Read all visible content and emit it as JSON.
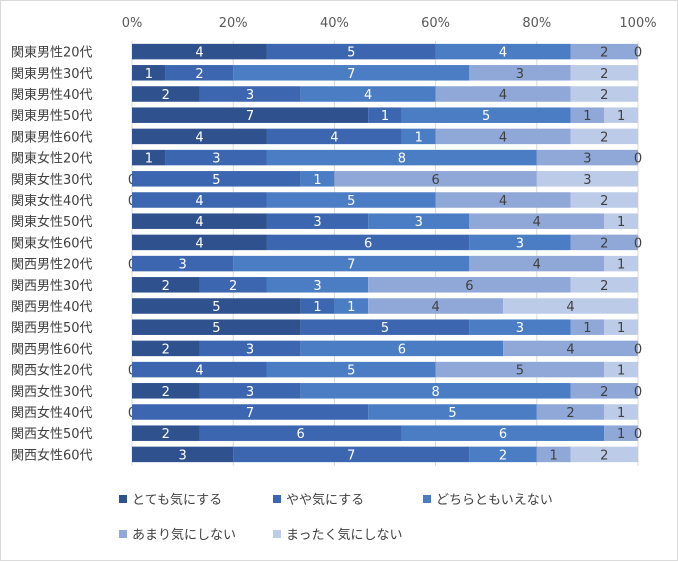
{
  "chart_data": {
    "type": "bar",
    "stacked": "percent",
    "orientation": "horizontal",
    "xlim": [
      0,
      100
    ],
    "x_ticks": [
      "0%",
      "20%",
      "40%",
      "60%",
      "80%",
      "100%"
    ],
    "categories": [
      "関東男性20代",
      "関東男性30代",
      "関東男性40代",
      "関東男性50代",
      "関東男性60代",
      "関東女性20代",
      "関東女性30代",
      "関東女性40代",
      "関東女性50代",
      "関東女性60代",
      "関西男性20代",
      "関西男性30代",
      "関西男性40代",
      "関西男性50代",
      "関西男性60代",
      "関西女性20代",
      "関西女性30代",
      "関西女性40代",
      "関西女性50代",
      "関西女性60代"
    ],
    "series": [
      {
        "name": "とても気にする",
        "color": "#2f528f",
        "label_color": "#ffffff",
        "values": [
          4,
          1,
          2,
          7,
          4,
          1,
          0,
          0,
          4,
          4,
          0,
          2,
          5,
          5,
          2,
          0,
          2,
          0,
          2,
          3
        ]
      },
      {
        "name": "やや気にする",
        "color": "#3c67b0",
        "label_color": "#ffffff",
        "values": [
          5,
          2,
          3,
          1,
          4,
          3,
          5,
          4,
          3,
          6,
          3,
          2,
          1,
          5,
          3,
          4,
          3,
          7,
          6,
          7
        ]
      },
      {
        "name": "どちらともいえない",
        "color": "#4a7dc4",
        "label_color": "#ffffff",
        "values": [
          4,
          7,
          4,
          5,
          1,
          8,
          1,
          5,
          3,
          3,
          7,
          3,
          1,
          3,
          6,
          5,
          8,
          5,
          6,
          2
        ]
      },
      {
        "name": "あまり気にしない",
        "color": "#8fa8d8",
        "label_color": "#404040",
        "values": [
          2,
          3,
          4,
          1,
          4,
          3,
          6,
          4,
          4,
          2,
          4,
          6,
          4,
          1,
          4,
          5,
          2,
          2,
          1,
          1
        ]
      },
      {
        "name": "まったく気にしない",
        "color": "#bccbe8",
        "label_color": "#404040",
        "values": [
          0,
          2,
          2,
          1,
          2,
          0,
          3,
          2,
          1,
          0,
          1,
          2,
          4,
          1,
          0,
          1,
          0,
          1,
          0,
          2
        ]
      }
    ],
    "grid": true,
    "legend_position": "bottom"
  }
}
